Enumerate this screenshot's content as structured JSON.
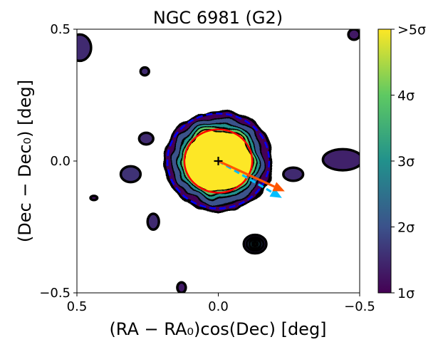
{
  "chart_data": {
    "type": "heatmap",
    "title": "NGC 6981 (G2)",
    "xlabel": "(RA − RA₀)cos(Dec) [deg]",
    "ylabel": "(Dec − Dec₀) [deg]",
    "xlim": [
      0.5,
      -0.5
    ],
    "ylim": [
      -0.5,
      0.5
    ],
    "xticks": [
      {
        "value": 0.5,
        "label": "0.5"
      },
      {
        "value": 0.0,
        "label": "0.0"
      },
      {
        "value": -0.5,
        "label": "−0.5"
      }
    ],
    "yticks": [
      {
        "value": -0.5,
        "label": "−0.5"
      },
      {
        "value": 0.0,
        "label": "0.0"
      },
      {
        "value": 0.5,
        "label": "0.5"
      }
    ],
    "colorbar": {
      "min_sigma": 1,
      "max_sigma": 5,
      "colors": [
        "#440154",
        "#3b528b",
        "#21918c",
        "#5ec962",
        "#fde725"
      ],
      "ticks": [
        {
          "value": 1,
          "label": "1σ"
        },
        {
          "value": 2,
          "label": "2σ"
        },
        {
          "value": 3,
          "label": "3σ"
        },
        {
          "value": 4,
          "label": "4σ"
        },
        {
          "value": 5,
          "label": ">5σ"
        }
      ]
    },
    "central_overdensity": {
      "center": [
        0.0,
        0.0
      ],
      "levels": [
        {
          "sigma": 1,
          "radius": 0.19
        },
        {
          "sigma": 2,
          "radius": 0.165
        },
        {
          "sigma": 3,
          "radius": 0.145
        },
        {
          "sigma": 4,
          "radius": 0.132
        },
        {
          "sigma": 5,
          "radius": 0.12
        }
      ]
    },
    "blobs": [
      {
        "x": 0.49,
        "y": 0.43,
        "rx": 0.04,
        "ry": 0.05,
        "sigma": 1.5
      },
      {
        "x": 0.26,
        "y": 0.34,
        "rx": 0.015,
        "ry": 0.015,
        "sigma": 1.5
      },
      {
        "x": 0.255,
        "y": 0.085,
        "rx": 0.025,
        "ry": 0.022,
        "sigma": 1.5
      },
      {
        "x": 0.31,
        "y": -0.05,
        "rx": 0.035,
        "ry": 0.03,
        "sigma": 1.6
      },
      {
        "x": 0.44,
        "y": -0.14,
        "rx": 0.012,
        "ry": 0.008,
        "sigma": 1.2
      },
      {
        "x": 0.23,
        "y": -0.23,
        "rx": 0.02,
        "ry": 0.03,
        "sigma": 1.5
      },
      {
        "x": -0.13,
        "y": -0.315,
        "rx": 0.04,
        "ry": 0.035,
        "sigma": 1.5
      },
      {
        "x": -0.13,
        "y": -0.315,
        "rx": 0.03,
        "ry": 0.025,
        "sigma": 2.0
      },
      {
        "x": -0.13,
        "y": -0.315,
        "rx": 0.02,
        "ry": 0.017,
        "sigma": 2.6
      },
      {
        "x": -0.13,
        "y": -0.315,
        "rx": 0.01,
        "ry": 0.008,
        "sigma": 3.2
      },
      {
        "x": -0.13,
        "y": -0.315,
        "rx": 0.004,
        "ry": 0.004,
        "sigma": 4.0
      },
      {
        "x": -0.265,
        "y": -0.05,
        "rx": 0.035,
        "ry": 0.025,
        "sigma": 1.5
      },
      {
        "x": -0.44,
        "y": 0.005,
        "rx": 0.07,
        "ry": 0.04,
        "sigma": 1.4
      },
      {
        "x": -0.48,
        "y": 0.48,
        "rx": 0.02,
        "ry": 0.02,
        "sigma": 1.3
      },
      {
        "x": 0.13,
        "y": -0.48,
        "rx": 0.015,
        "ry": 0.02,
        "sigma": 1.3
      }
    ],
    "tidal_radius_circle": {
      "center": [
        0.0,
        0.0
      ],
      "radius": 0.12,
      "color": "#ff0000",
      "style": "solid"
    },
    "outer_radius_circle": {
      "center": [
        0.0,
        0.0
      ],
      "radius": 0.18,
      "color": "#0000ff",
      "style": "dashed"
    },
    "cluster_center_marker": {
      "x": 0.0,
      "y": 0.0,
      "symbol": "+"
    },
    "arrows": [
      {
        "name": "proper-motion",
        "from": [
          0.0,
          0.0
        ],
        "to": [
          -0.235,
          -0.115
        ],
        "color": "#ff5500",
        "style": "solid"
      },
      {
        "name": "orbit-direction",
        "from": [
          0.0,
          0.0
        ],
        "to": [
          -0.225,
          -0.14
        ],
        "color": "#00bfff",
        "style": "dashed"
      }
    ]
  }
}
